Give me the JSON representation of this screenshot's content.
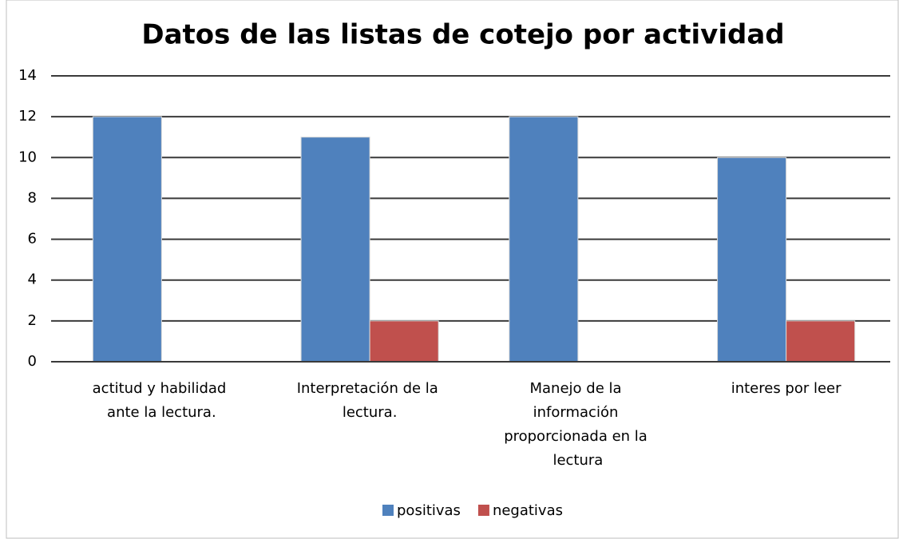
{
  "chart_data": {
    "type": "bar",
    "title": "Datos de las listas de cotejo por actividad",
    "categories": [
      "actitud y habilidad ante la lectura.",
      "Interpretación de la lectura.",
      "Manejo de la información proporcionada en la lectura",
      "interes por leer"
    ],
    "series": [
      {
        "name": "positivas",
        "color": "#4f81bd",
        "values": [
          12,
          11,
          12,
          10
        ]
      },
      {
        "name": "negativas",
        "color": "#c0504d",
        "values": [
          0,
          2,
          0,
          2
        ]
      }
    ],
    "ylim": [
      0,
      14
    ],
    "yticks": [
      0,
      2,
      4,
      6,
      8,
      10,
      12,
      14
    ],
    "grid": true,
    "legend": "bottom"
  }
}
